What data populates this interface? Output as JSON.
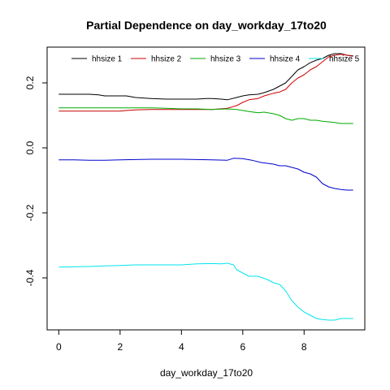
{
  "chart_data": {
    "type": "line",
    "title": "Partial Dependence on day_workday_17to20",
    "xlabel": "day_workday_17to20",
    "ylabel": "",
    "xlim": [
      -0.38,
      9.98
    ],
    "ylim": [
      -0.56,
      0.31
    ],
    "x_ticks": [
      0,
      2,
      4,
      6,
      8
    ],
    "x_tick_labels": [
      "0",
      "2",
      "4",
      "6",
      "8"
    ],
    "y_ticks": [
      -0.4,
      -0.2,
      0.0,
      0.2
    ],
    "y_tick_labels": [
      "-0.4",
      "-0.2",
      "0.0",
      "0.2"
    ],
    "grid": false,
    "legend": "top, horizontal, no border",
    "series": [
      {
        "name": "hhsize 1",
        "color": "#000000",
        "x": [
          0,
          0.5,
          1.0,
          1.3,
          1.5,
          2.0,
          2.2,
          2.5,
          3.0,
          3.5,
          4.0,
          4.5,
          4.8,
          5.0,
          5.3,
          5.5,
          5.8,
          6.0,
          6.2,
          6.5,
          6.7,
          7.0,
          7.2,
          7.4,
          7.6,
          7.8,
          8.0,
          8.2,
          8.4,
          8.6,
          8.8,
          9.0,
          9.2,
          9.4,
          9.6
        ],
        "y": [
          0.165,
          0.165,
          0.165,
          0.163,
          0.16,
          0.16,
          0.16,
          0.155,
          0.152,
          0.15,
          0.15,
          0.15,
          0.152,
          0.152,
          0.15,
          0.148,
          0.155,
          0.16,
          0.163,
          0.165,
          0.17,
          0.18,
          0.19,
          0.2,
          0.22,
          0.24,
          0.25,
          0.262,
          0.27,
          0.275,
          0.285,
          0.29,
          0.29,
          0.285,
          0.283
        ]
      },
      {
        "name": "hhsize 2",
        "color": "#cc0000",
        "x": [
          0,
          0.5,
          1.0,
          1.5,
          2.0,
          2.2,
          2.5,
          3.0,
          3.5,
          4.0,
          4.5,
          5.0,
          5.5,
          5.8,
          6.0,
          6.2,
          6.5,
          6.7,
          7.0,
          7.2,
          7.4,
          7.6,
          7.8,
          8.0,
          8.2,
          8.4,
          8.6,
          8.8,
          9.0,
          9.2,
          9.4,
          9.6
        ],
        "y": [
          0.113,
          0.113,
          0.113,
          0.113,
          0.113,
          0.115,
          0.117,
          0.118,
          0.118,
          0.118,
          0.118,
          0.118,
          0.122,
          0.13,
          0.14,
          0.148,
          0.152,
          0.16,
          0.168,
          0.172,
          0.18,
          0.2,
          0.215,
          0.225,
          0.24,
          0.25,
          0.265,
          0.28,
          0.285,
          0.288,
          0.285,
          0.282
        ]
      },
      {
        "name": "hhsize 3",
        "color": "#00aa00",
        "x": [
          0,
          0.5,
          1.0,
          1.5,
          2.0,
          2.5,
          3.0,
          3.5,
          4.0,
          4.5,
          5.0,
          5.5,
          5.8,
          6.0,
          6.2,
          6.5,
          6.7,
          7.0,
          7.2,
          7.4,
          7.6,
          7.8,
          8.0,
          8.2,
          8.4,
          8.6,
          8.8,
          9.0,
          9.2,
          9.4,
          9.6
        ],
        "y": [
          0.123,
          0.123,
          0.123,
          0.123,
          0.123,
          0.123,
          0.123,
          0.122,
          0.12,
          0.12,
          0.118,
          0.12,
          0.118,
          0.115,
          0.112,
          0.108,
          0.11,
          0.105,
          0.1,
          0.09,
          0.085,
          0.09,
          0.09,
          0.085,
          0.085,
          0.082,
          0.08,
          0.078,
          0.075,
          0.075,
          0.075
        ]
      },
      {
        "name": "hhsize 4",
        "color": "#0000cc",
        "x": [
          0,
          0.5,
          1.0,
          1.5,
          2.0,
          2.5,
          3.0,
          3.5,
          4.0,
          4.5,
          5.0,
          5.5,
          5.7,
          6.0,
          6.3,
          6.6,
          7.0,
          7.2,
          7.4,
          7.6,
          7.8,
          8.0,
          8.2,
          8.4,
          8.6,
          8.8,
          9.0,
          9.2,
          9.4,
          9.6
        ],
        "y": [
          -0.037,
          -0.037,
          -0.038,
          -0.038,
          -0.037,
          -0.036,
          -0.035,
          -0.035,
          -0.035,
          -0.036,
          -0.037,
          -0.038,
          -0.032,
          -0.033,
          -0.038,
          -0.045,
          -0.05,
          -0.055,
          -0.055,
          -0.06,
          -0.065,
          -0.075,
          -0.08,
          -0.09,
          -0.11,
          -0.12,
          -0.125,
          -0.128,
          -0.13,
          -0.13
        ]
      },
      {
        "name": "hhsize 5",
        "color": "#00e5ee",
        "x": [
          0,
          0.5,
          1.0,
          1.5,
          2.0,
          2.5,
          3.0,
          3.5,
          4.0,
          4.5,
          5.0,
          5.3,
          5.5,
          5.7,
          5.8,
          6.0,
          6.2,
          6.5,
          6.8,
          7.0,
          7.2,
          7.4,
          7.6,
          7.8,
          8.0,
          8.2,
          8.4,
          8.6,
          8.8,
          9.0,
          9.2,
          9.4,
          9.6
        ],
        "y": [
          -0.367,
          -0.366,
          -0.365,
          -0.363,
          -0.362,
          -0.36,
          -0.36,
          -0.36,
          -0.36,
          -0.357,
          -0.356,
          -0.357,
          -0.355,
          -0.36,
          -0.375,
          -0.385,
          -0.395,
          -0.395,
          -0.405,
          -0.415,
          -0.42,
          -0.44,
          -0.47,
          -0.49,
          -0.505,
          -0.515,
          -0.525,
          -0.528,
          -0.53,
          -0.53,
          -0.525,
          -0.525,
          -0.525
        ]
      }
    ]
  }
}
